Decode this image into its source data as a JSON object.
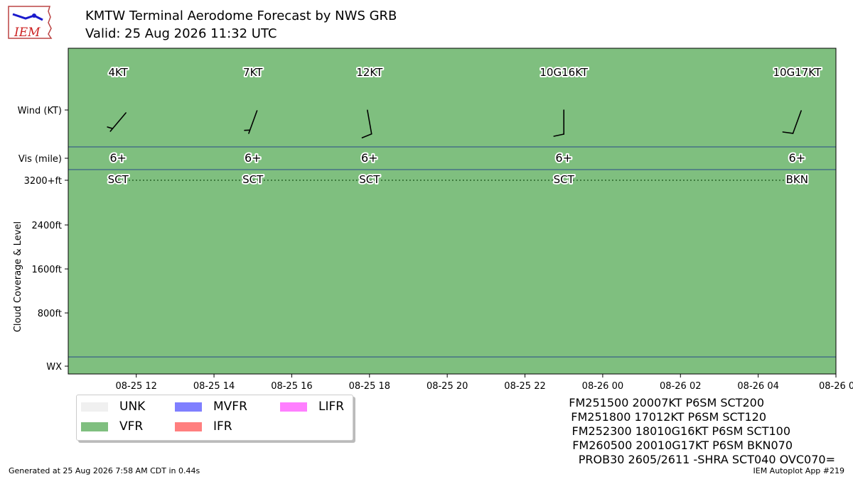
{
  "header": {
    "title": "KMTW Terminal Aerodome Forecast by NWS GRB",
    "subtitle": "Valid: 25 Aug 2026 11:32 UTC",
    "logo_text": "IEM"
  },
  "colors": {
    "VFR": "#7fbf7f",
    "UNK": "#f0f0f0",
    "MVFR": "#7f7fff",
    "IFR": "#ff7f7f",
    "LIFR": "#ff7fff"
  },
  "chart_data": {
    "type": "timeline",
    "ylabel": "Cloud Coverage & Level",
    "row_labels": [
      "Wind (KT)",
      "Vis (mile)",
      "3200+ft",
      "2400ft",
      "1600ft",
      "800ft",
      "WX"
    ],
    "x_ticks": [
      "08-25 12",
      "08-25 14",
      "08-25 16",
      "08-25 18",
      "08-25 20",
      "08-25 22",
      "08-26 00",
      "08-26 02",
      "08-26 04",
      "08-26 06"
    ],
    "x_range": [
      "2026-08-25T10:15Z",
      "2026-08-26T06:00Z"
    ],
    "background_category": "VFR",
    "forecasts": [
      {
        "time": "2026-08-25T11:32Z",
        "wind_dir": 220,
        "wind_speed": 4,
        "wind_label": "4KT",
        "vis_label": "6+",
        "cloud_label": "SCT"
      },
      {
        "time": "2026-08-25T15:00Z",
        "wind_dir": 200,
        "wind_speed": 7,
        "wind_label": "7KT",
        "vis_label": "6+",
        "cloud_label": "SCT"
      },
      {
        "time": "2026-08-25T18:00Z",
        "wind_dir": 170,
        "wind_speed": 12,
        "wind_label": "12KT",
        "vis_label": "6+",
        "cloud_label": "SCT"
      },
      {
        "time": "2026-08-25T23:00Z",
        "wind_dir": 180,
        "wind_speed": 10,
        "wind_label": "10G16KT",
        "vis_label": "6+",
        "cloud_label": "SCT"
      },
      {
        "time": "2026-08-26T05:00Z",
        "wind_dir": 200,
        "wind_speed": 10,
        "wind_label": "10G17KT",
        "vis_label": "6+",
        "cloud_label": "BKN"
      }
    ]
  },
  "legend": [
    {
      "label": "UNK",
      "color": "#f0f0f0"
    },
    {
      "label": "MVFR",
      "color": "#7f7fff"
    },
    {
      "label": "LIFR",
      "color": "#ff7fff"
    },
    {
      "label": "VFR",
      "color": "#7fbf7f"
    },
    {
      "label": "IFR",
      "color": "#ff7f7f"
    }
  ],
  "taf_lines": [
    "FM251500 20007KT P6SM SCT200",
    "FM251800 17012KT P6SM SCT120",
    "FM252300 18010G16KT P6SM SCT100",
    "FM260500 20010G17KT P6SM BKN070",
    "PROB30 2605/2611 -SHRA SCT040 OVC070="
  ],
  "footer": {
    "left": "Generated at 25 Aug 2026 7:58 AM CDT in 0.44s",
    "right": "IEM Autoplot App #219"
  }
}
